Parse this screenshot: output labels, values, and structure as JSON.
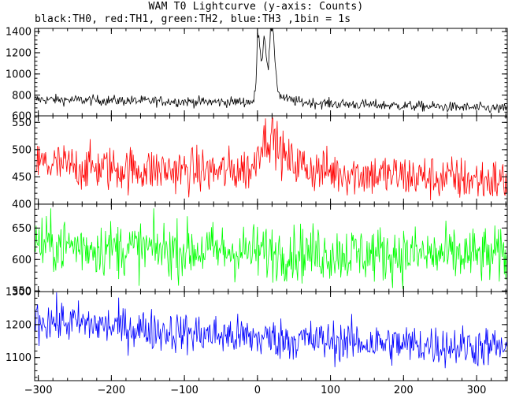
{
  "chart_data": {
    "type": "line",
    "title": "WAM T0 Lightcurve (y-axis: Counts)",
    "subtitle": "black:TH0, red:TH1, green:TH2, blue:TH3 ,1bin = 1s",
    "xlabel": "",
    "ylabel": "",
    "xlim": [
      -305,
      342
    ],
    "x_ticks": [
      -300,
      -200,
      -100,
      0,
      100,
      200,
      300
    ],
    "panels": [
      {
        "name": "TH0",
        "color": "#000000",
        "ylim": [
          605,
          1430
        ],
        "y_ticks": [
          600,
          800,
          1000,
          1200,
          1400
        ],
        "keypoints": [
          [
            -305,
            760
          ],
          [
            -250,
            755
          ],
          [
            -150,
            745
          ],
          [
            -50,
            735
          ],
          [
            -5,
            740
          ],
          [
            -2,
            900
          ],
          [
            0,
            1380
          ],
          [
            3,
            1300
          ],
          [
            6,
            1100
          ],
          [
            9,
            1380
          ],
          [
            12,
            1200
          ],
          [
            15,
            1050
          ],
          [
            18,
            1430
          ],
          [
            21,
            1400
          ],
          [
            24,
            1150
          ],
          [
            27,
            900
          ],
          [
            30,
            800
          ],
          [
            40,
            760
          ],
          [
            60,
            735
          ],
          [
            100,
            720
          ],
          [
            200,
            700
          ],
          [
            300,
            680
          ],
          [
            342,
            670
          ]
        ],
        "noise": 35
      },
      {
        "name": "TH1",
        "color": "#ff0000",
        "ylim": [
          400,
          562
        ],
        "y_ticks": [
          400,
          450,
          500,
          550
        ],
        "keypoints": [
          [
            -305,
            475
          ],
          [
            -250,
            468
          ],
          [
            -150,
            463
          ],
          [
            -50,
            460
          ],
          [
            -5,
            465
          ],
          [
            0,
            500
          ],
          [
            10,
            520
          ],
          [
            20,
            528
          ],
          [
            28,
            505
          ],
          [
            40,
            480
          ],
          [
            80,
            462
          ],
          [
            150,
            455
          ],
          [
            250,
            448
          ],
          [
            342,
            442
          ]
        ],
        "noise": 30
      },
      {
        "name": "TH2",
        "color": "#00ff00",
        "ylim": [
          549,
          688
        ],
        "y_ticks": [
          550,
          600,
          650
        ],
        "keypoints": [
          [
            -305,
            625
          ],
          [
            -200,
            618
          ],
          [
            0,
            612
          ],
          [
            100,
            610
          ],
          [
            200,
            608
          ],
          [
            342,
            605
          ]
        ],
        "noise": 32
      },
      {
        "name": "TH3",
        "color": "#0000ff",
        "ylim": [
          1030,
          1300
        ],
        "y_ticks": [
          1100,
          1200,
          1300
        ],
        "keypoints": [
          [
            -305,
            1215
          ],
          [
            -200,
            1195
          ],
          [
            -100,
            1175
          ],
          [
            0,
            1160
          ],
          [
            100,
            1150
          ],
          [
            200,
            1140
          ],
          [
            342,
            1130
          ]
        ],
        "noise": 45
      }
    ]
  }
}
